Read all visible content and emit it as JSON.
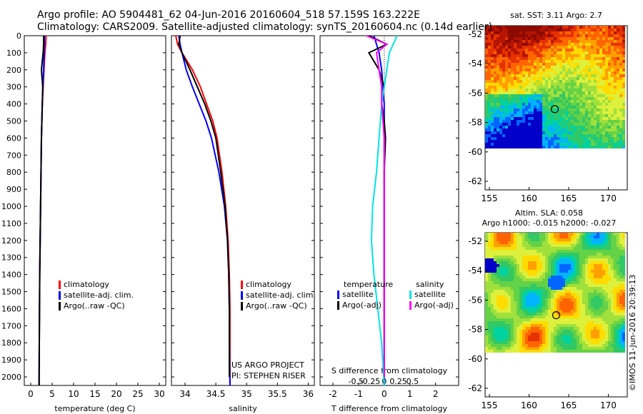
{
  "header": {
    "line1": "Argo profile: AO 5904481_62 04-Jun-2016 20160604_518 57.159S 163.222E",
    "line2": "Climatology: CARS2009. Satellite-adjusted climatology: synTS_20160604.nc (0.14d earlier)"
  },
  "colors": {
    "climatology": "#ff0000",
    "satellite": "#0000ff",
    "argo": "#000000",
    "sat_s": "#00e5e5",
    "argo_s": "#ff00ff"
  },
  "depth_axis": {
    "ticks": [
      0,
      100,
      200,
      300,
      400,
      500,
      600,
      700,
      800,
      900,
      1000,
      1100,
      1200,
      1300,
      1400,
      1500,
      1600,
      1700,
      1800,
      1900,
      2000
    ],
    "max": 2050
  },
  "panels": {
    "temperature": {
      "xlabel": "temperature (deg C)",
      "xticks": [
        0,
        5,
        10,
        15,
        20,
        25,
        30
      ],
      "xlim": [
        -1.5,
        31.5
      ],
      "legend": [
        "climatology",
        "satellite-adj. clim.",
        "Argo(..raw -QC)"
      ]
    },
    "salinity": {
      "xlabel": "salinity",
      "xticks": [
        "34",
        "34.5",
        "35",
        "35.5",
        "36"
      ],
      "xlim": [
        33.78,
        36.1
      ],
      "legend": [
        "climatology",
        "satellite-adj. clim.",
        "Argo(..raw -QC)"
      ],
      "project_lines": [
        "US ARGO PROJECT",
        "PI: STEPHEN RISER"
      ]
    },
    "difference": {
      "xlabel": "T difference from climatology",
      "xlabel2": "S difference from climatology",
      "xticks_t": [
        "-2",
        "-1",
        "0",
        "1",
        "2"
      ],
      "xlim_t": [
        -2.5,
        2.9
      ],
      "xticks_s": [
        "-0.5",
        "-0.25",
        "0",
        "0.25",
        "0.5"
      ],
      "legend_t_title": "temperature",
      "legend_s_title": "salinity",
      "legend_t": [
        "satellite",
        "Argo(-adj)"
      ],
      "legend_s": [
        "satellite",
        "Argo(-adj)"
      ]
    }
  },
  "maps": {
    "sst": {
      "title": "sat. SST: 3.11 Argo: 2.7",
      "yticks": [
        "-52",
        "-54",
        "-56",
        "-58",
        "-60",
        "-62"
      ],
      "xticks": [
        "155",
        "160",
        "165",
        "170"
      ]
    },
    "sla": {
      "title1": "Altim. SLA: 0.058",
      "title2": "Argo h1000: -0.015 h2000: -0.027",
      "yticks": [
        "-52",
        "-54",
        "-56",
        "-58",
        "-60",
        "-62"
      ],
      "xticks": [
        "155",
        "160",
        "165",
        "170"
      ]
    },
    "credit": "©IMOS 11-Jun-2016 20:39:13"
  },
  "chart_data": [
    {
      "type": "line",
      "title": "",
      "xlabel": "temperature (deg C)",
      "ylabel": "",
      "xlim": [
        -1.5,
        31.5
      ],
      "ylim": [
        2050,
        0
      ],
      "series": [
        {
          "name": "climatology",
          "x": [
            3.6,
            3.5,
            3.3,
            3.1,
            2.9,
            2.7,
            2.6,
            2.5,
            2.4,
            2.3,
            2.2,
            2.1,
            2.05,
            2.0,
            1.95
          ],
          "y": [
            0,
            50,
            100,
            200,
            300,
            400,
            500,
            600,
            800,
            1000,
            1200,
            1400,
            1600,
            1800,
            2050
          ]
        },
        {
          "name": "satellite-adj. clim.",
          "x": [
            3.2,
            3.2,
            3.15,
            3.0,
            2.85,
            2.7,
            2.6,
            2.5,
            2.4,
            2.3,
            2.2,
            2.1,
            2.05,
            2.0,
            1.95
          ],
          "y": [
            0,
            50,
            100,
            200,
            300,
            400,
            500,
            600,
            800,
            1000,
            1200,
            1400,
            1600,
            1800,
            2050
          ]
        },
        {
          "name": "Argo(..raw -QC)",
          "x": [
            3.0,
            3.0,
            2.9,
            2.5,
            2.8,
            2.7,
            2.6,
            2.5,
            2.4,
            2.3,
            2.2,
            2.1,
            2.05,
            2.0,
            1.95
          ],
          "y": [
            0,
            50,
            100,
            200,
            300,
            400,
            500,
            600,
            800,
            1000,
            1200,
            1400,
            1600,
            1800,
            2050
          ]
        }
      ]
    },
    {
      "type": "line",
      "title": "",
      "xlabel": "salinity",
      "ylabel": "",
      "xlim": [
        33.78,
        36.1
      ],
      "ylim": [
        2050,
        0
      ],
      "series": [
        {
          "name": "climatology",
          "x": [
            33.85,
            33.88,
            33.95,
            34.12,
            34.25,
            34.35,
            34.45,
            34.52,
            34.6,
            34.66,
            34.7,
            34.72,
            34.73,
            34.73,
            34.73
          ],
          "y": [
            0,
            50,
            100,
            200,
            300,
            400,
            500,
            600,
            800,
            1000,
            1200,
            1400,
            1600,
            1800,
            2050
          ]
        },
        {
          "name": "satellite-adj. clim.",
          "x": [
            33.9,
            33.92,
            33.95,
            34.02,
            34.12,
            34.23,
            34.34,
            34.43,
            34.55,
            34.64,
            34.69,
            34.71,
            34.72,
            34.72,
            34.73
          ],
          "y": [
            0,
            50,
            100,
            200,
            300,
            400,
            500,
            600,
            800,
            1000,
            1200,
            1400,
            1600,
            1800,
            2050
          ]
        },
        {
          "name": "Argo(..raw -QC)",
          "x": [
            33.92,
            33.9,
            33.95,
            34.08,
            34.2,
            34.32,
            34.42,
            34.5,
            34.58,
            34.65,
            34.69,
            34.71,
            34.72,
            34.72,
            34.72
          ],
          "y": [
            0,
            50,
            100,
            200,
            300,
            400,
            500,
            600,
            800,
            1000,
            1200,
            1400,
            1600,
            1800,
            2000
          ]
        }
      ]
    },
    {
      "type": "line",
      "title": "",
      "xlabel": "T difference from climatology",
      "ylabel": "",
      "xlim": [
        -2.5,
        2.9
      ],
      "ylim": [
        2050,
        0
      ],
      "series": [
        {
          "name": "satellite",
          "x": [
            -0.4,
            -0.3,
            -0.2,
            -0.1,
            -0.05,
            0,
            0,
            0,
            0,
            0,
            0,
            0,
            0,
            0,
            0
          ],
          "y": [
            0,
            50,
            100,
            200,
            300,
            400,
            500,
            600,
            800,
            1000,
            1200,
            1400,
            1600,
            1800,
            2050
          ]
        },
        {
          "name": "Argo(-adj)",
          "x": [
            -0.6,
            0.1,
            -0.6,
            -0.2,
            0.0,
            -0.1,
            0,
            0.05,
            0,
            0,
            0,
            0,
            0,
            0,
            0
          ],
          "y": [
            0,
            50,
            100,
            200,
            300,
            400,
            500,
            600,
            800,
            1000,
            1200,
            1400,
            1600,
            1800,
            2000
          ]
        },
        {
          "name": "satellite",
          "x": [
            0.5,
            0.35,
            0.2,
            0.1,
            0.0,
            -0.1,
            -0.15,
            -0.2,
            -0.3,
            -0.45,
            -0.5,
            -0.4,
            -0.25,
            -0.1,
            0
          ],
          "y": [
            0,
            50,
            100,
            200,
            300,
            400,
            500,
            600,
            800,
            1000,
            1200,
            1400,
            1600,
            1800,
            2050
          ]
        },
        {
          "name": "Argo(-adj)",
          "x": [
            -0.7,
            0.1,
            -0.3,
            -0.2,
            -0.1,
            -0.1,
            -0.05,
            0,
            0,
            0,
            0,
            0,
            0,
            0,
            0
          ],
          "y": [
            0,
            50,
            100,
            200,
            300,
            400,
            500,
            600,
            800,
            1000,
            1200,
            1400,
            1600,
            1800,
            2000
          ]
        }
      ]
    }
  ]
}
